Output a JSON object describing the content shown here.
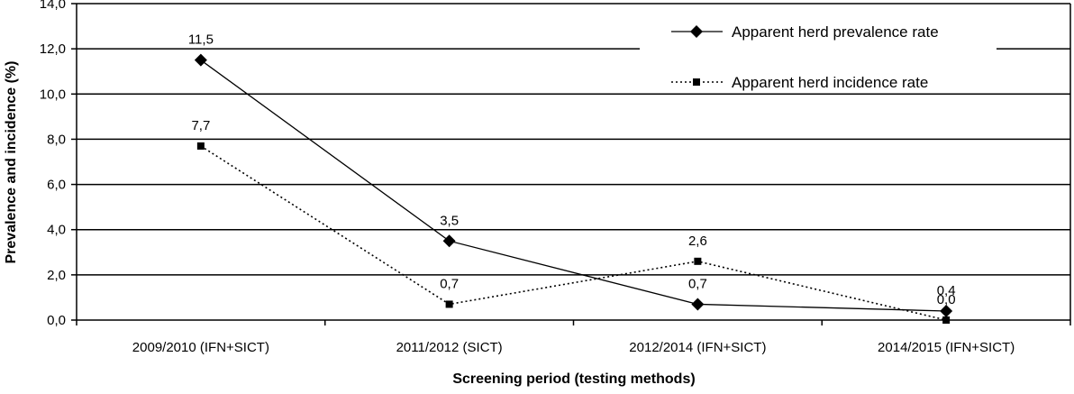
{
  "chart_data": {
    "type": "line",
    "title": "",
    "xlabel": "Screening period (testing methods)",
    "ylabel": "Prevalence and incidence (%)",
    "ylim": [
      0,
      14
    ],
    "yticks": [
      "0,0",
      "2,0",
      "4,0",
      "6,0",
      "8,0",
      "10,0",
      "12,0",
      "14,0"
    ],
    "ytick_values": [
      0,
      2,
      4,
      6,
      8,
      10,
      12,
      14
    ],
    "categories": [
      "2009/2010 (IFN+SICT)",
      "2011/2012 (SICT)",
      "2012/2014 (IFN+SICT)",
      "2014/2015 (IFN+SICT)"
    ],
    "grid": true,
    "legend_position": "top-right",
    "series": [
      {
        "name": "Apparent herd prevalence rate",
        "values": [
          11.5,
          3.5,
          0.7,
          0.4
        ],
        "labels": [
          "11,5",
          "3,5",
          "0,7",
          "0,4"
        ],
        "line_style": "solid",
        "marker": "diamond",
        "color": "#000000"
      },
      {
        "name": "Apparent herd incidence rate",
        "values": [
          7.7,
          0.7,
          2.6,
          0.0
        ],
        "labels": [
          "7,7",
          "0,7",
          "2,6",
          "0,0"
        ],
        "line_style": "dotted",
        "marker": "square",
        "color": "#000000"
      }
    ]
  }
}
